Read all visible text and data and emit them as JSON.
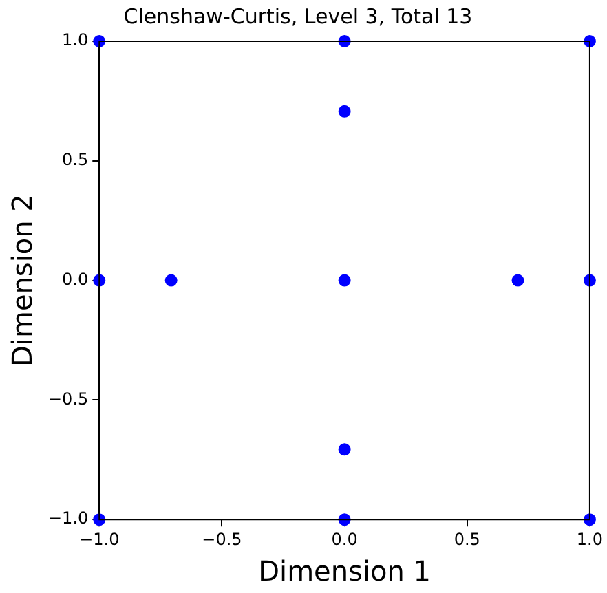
{
  "chart_data": {
    "type": "scatter",
    "title": "Clenshaw-Curtis, Level 3, Total 13",
    "xlabel": "Dimension 1",
    "ylabel": "Dimension 2",
    "x": [
      -1,
      0,
      1,
      0,
      -1,
      -0.707,
      0,
      0.707,
      1,
      0,
      -1,
      0,
      1
    ],
    "series": [
      {
        "color": "#0000ff",
        "values": [
          1,
          1,
          1,
          0.707,
          0,
          0,
          0,
          0,
          0,
          -0.707,
          -1,
          -1,
          -1
        ]
      }
    ],
    "xlim": [
      -1,
      1
    ],
    "ylim": [
      -1,
      1
    ],
    "xticks": [
      {
        "value": -1,
        "label": "−1.0"
      },
      {
        "value": -0.5,
        "label": "−0.5"
      },
      {
        "value": 0,
        "label": "0.0"
      },
      {
        "value": 0.5,
        "label": "0.5"
      },
      {
        "value": 1,
        "label": "1.0"
      }
    ],
    "yticks": [
      {
        "value": -1,
        "label": "−1.0"
      },
      {
        "value": -0.5,
        "label": "−0.5"
      },
      {
        "value": 0,
        "label": "0.0"
      },
      {
        "value": 0.5,
        "label": "0.5"
      },
      {
        "value": 1,
        "label": "1.0"
      }
    ],
    "grid": false,
    "legend": false,
    "marker": "circle"
  }
}
